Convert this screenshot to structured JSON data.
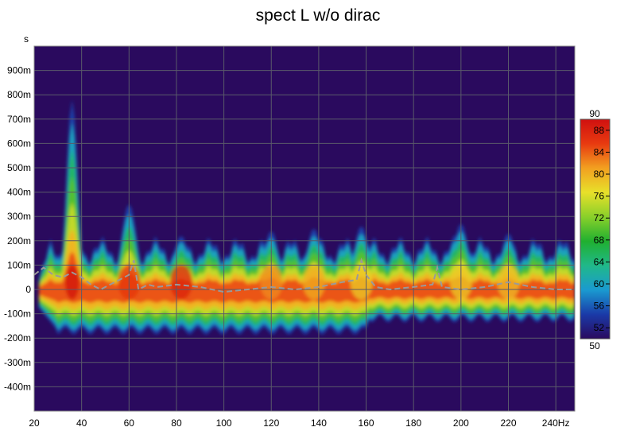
{
  "chart_data": {
    "type": "heatmap",
    "title": "spect L w/o dirac",
    "xlabel": "",
    "ylabel": "",
    "x_unit_label": "Hz",
    "y_unit_label": "s",
    "xlim": [
      20,
      248
    ],
    "ylim": [
      -0.5,
      1.0
    ],
    "x_ticks": [
      20,
      40,
      60,
      80,
      100,
      120,
      140,
      160,
      180,
      200,
      220,
      240
    ],
    "x_tick_labels": [
      "20",
      "40",
      "60",
      "80",
      "100",
      "120",
      "140",
      "160",
      "180",
      "200",
      "220",
      "240Hz"
    ],
    "y_ticks": [
      -0.4,
      -0.3,
      -0.2,
      -0.1,
      0,
      0.1,
      0.2,
      0.3,
      0.4,
      0.5,
      0.6,
      0.7,
      0.8,
      0.9
    ],
    "y_tick_labels": [
      "-400m",
      "-300m",
      "-200m",
      "-100m",
      "0",
      "100m",
      "200m",
      "300m",
      "400m",
      "500m",
      "600m",
      "700m",
      "800m",
      "900m"
    ],
    "grid": true,
    "background_color": "#2a0a5e",
    "colorbar": {
      "min": 50,
      "max": 90,
      "ticks": [
        50,
        52,
        56,
        60,
        64,
        68,
        72,
        76,
        80,
        84,
        88,
        90
      ],
      "tick_labels": [
        "50",
        "52",
        "56",
        "60",
        "64",
        "68",
        "72",
        "76",
        "80",
        "84",
        "88",
        "90"
      ],
      "colormap": [
        "#2a0a5e",
        "#1a3aa8",
        "#1a9ad0",
        "#20b88a",
        "#20b030",
        "#8ad02a",
        "#e8e02a",
        "#f2a020",
        "#e83a10",
        "#d01010"
      ]
    },
    "resonances": [
      {
        "freq": 36,
        "peak_time": 0.78,
        "level": 90
      },
      {
        "freq": 60,
        "peak_time": 0.35,
        "level": 86
      },
      {
        "freq": 82,
        "peak_time": 0.22,
        "level": 88
      },
      {
        "freq": 120,
        "peak_time": 0.24,
        "level": 82
      },
      {
        "freq": 138,
        "peak_time": 0.25,
        "level": 80
      },
      {
        "freq": 158,
        "peak_time": 0.26,
        "level": 78
      },
      {
        "freq": 200,
        "peak_time": 0.27,
        "level": 78
      },
      {
        "freq": 220,
        "peak_time": 0.23,
        "level": 79
      }
    ],
    "series": [
      {
        "style": "dashed",
        "color": "#9a9a9a",
        "x": [
          20,
          24,
          28,
          32,
          36,
          40,
          44,
          48,
          52,
          56,
          60,
          62,
          64,
          68,
          72,
          80,
          90,
          100,
          110,
          120,
          130,
          140,
          150,
          156,
          158,
          160,
          164,
          170,
          180,
          188,
          190,
          192,
          200,
          210,
          220,
          230,
          240,
          248
        ],
        "y": [
          0.06,
          0.09,
          0.06,
          0.05,
          0.07,
          0.05,
          0.02,
          0.0,
          0.02,
          0.04,
          0.06,
          0.12,
          0.0,
          0.02,
          0.01,
          0.02,
          0.01,
          -0.01,
          0.0,
          0.01,
          0.0,
          0.01,
          0.03,
          0.04,
          0.12,
          0.06,
          0.01,
          0.0,
          0.01,
          0.02,
          0.09,
          0.01,
          0.0,
          0.01,
          0.03,
          0.01,
          0.0,
          0.0
        ]
      }
    ]
  }
}
